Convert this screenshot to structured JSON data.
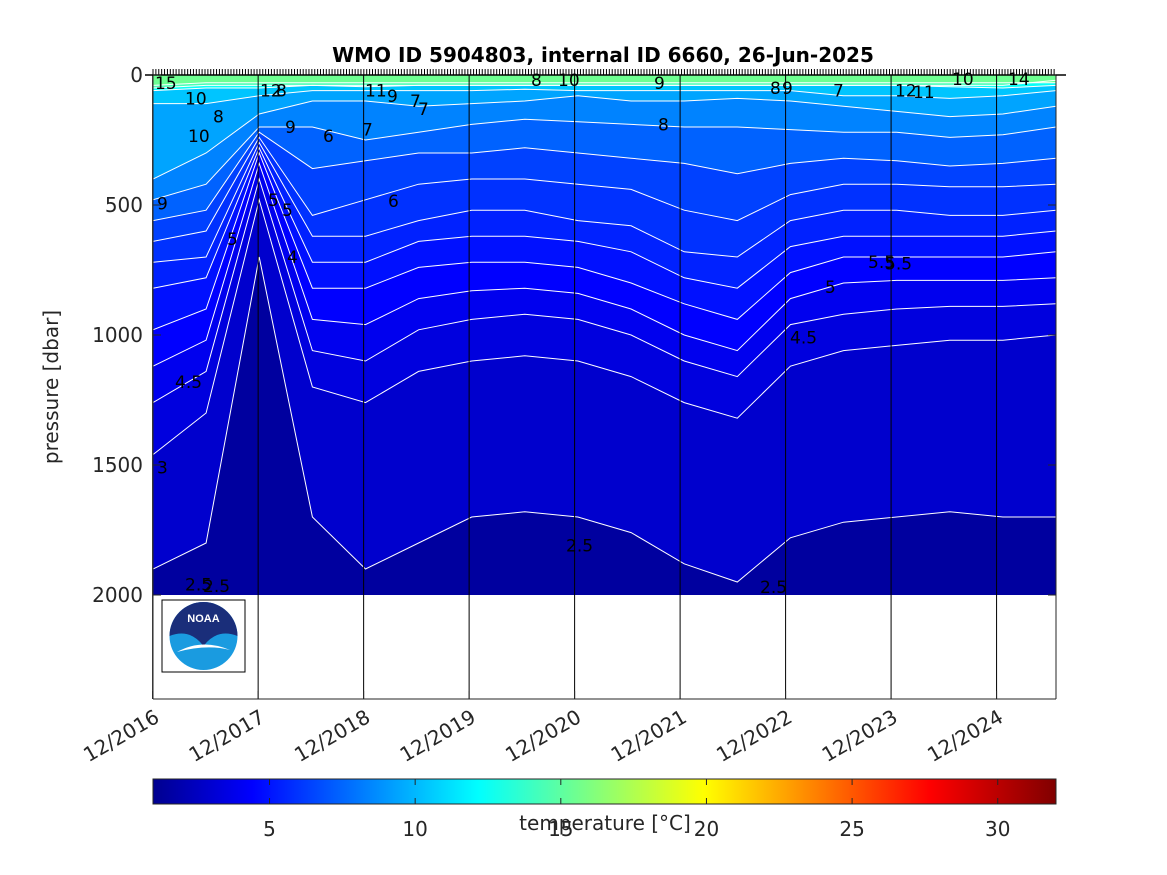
{
  "chart_data": {
    "type": "heatmap",
    "title": "WMO ID 5904803, internal ID 6660, 26-Jun-2025",
    "ylabel": "pressure [dbar]",
    "colorbar_label": "temperature [°C]",
    "y_ticks": [
      "0",
      "500",
      "1000",
      "1500",
      "2000"
    ],
    "ylim": [
      0,
      2400
    ],
    "y_reversed": true,
    "x_tick_labels": [
      "12/2016",
      "12/2017",
      "12/2018",
      "12/2019",
      "12/2020",
      "12/2021",
      "12/2022",
      "12/2023",
      "12/2024"
    ],
    "x_range_years": [
      2016.92,
      2025.48
    ],
    "data_max_pressure": 2000,
    "colorbar_ticks": [
      "5",
      "10",
      "15",
      "20",
      "25",
      "30"
    ],
    "colorbar_range": [
      1,
      32
    ],
    "colormap": "jet",
    "contour_color": "#ffffff",
    "profile_dates_lines_color": "#000000",
    "contour_levels": [
      {
        "label": "15",
        "depths": [
          40,
          30,
          30,
          30,
          30,
          30,
          30,
          30,
          30,
          30,
          30,
          30,
          30,
          30,
          30,
          30,
          30,
          30
        ]
      },
      {
        "label": "14",
        "depths": [
          50,
          40,
          40,
          40,
          40,
          40,
          40,
          40,
          40,
          40,
          40,
          40,
          40,
          40,
          40,
          40,
          40,
          20
        ]
      },
      {
        "label": "12",
        "depths": [
          60,
          50,
          50,
          40,
          45,
          40,
          40,
          40,
          40,
          40,
          40,
          40,
          40,
          40,
          40,
          45,
          50,
          40
        ]
      },
      {
        "label": "10",
        "depths": [
          110,
          110,
          80,
          60,
          60,
          60,
          60,
          55,
          60,
          60,
          60,
          60,
          60,
          80,
          80,
          90,
          80,
          60
        ]
      },
      {
        "label": "9",
        "depths": [
          400,
          300,
          150,
          100,
          100,
          120,
          110,
          100,
          80,
          100,
          100,
          90,
          100,
          120,
          140,
          160,
          150,
          120
        ]
      },
      {
        "label": "8",
        "depths": [
          480,
          420,
          200,
          200,
          250,
          220,
          190,
          170,
          180,
          190,
          200,
          200,
          210,
          220,
          220,
          240,
          230,
          200
        ]
      },
      {
        "label": "7",
        "depths": [
          560,
          520,
          220,
          360,
          330,
          300,
          300,
          280,
          300,
          320,
          340,
          380,
          340,
          320,
          330,
          350,
          340,
          320
        ]
      },
      {
        "label": "6",
        "depths": [
          640,
          600,
          240,
          540,
          480,
          420,
          400,
          400,
          420,
          440,
          520,
          560,
          460,
          420,
          420,
          430,
          430,
          420
        ]
      },
      {
        "label": "5.5",
        "depths": [
          720,
          700,
          260,
          620,
          620,
          560,
          520,
          520,
          560,
          580,
          680,
          700,
          560,
          520,
          520,
          540,
          540,
          520
        ]
      },
      {
        "label": "5",
        "depths": [
          820,
          780,
          280,
          720,
          720,
          640,
          620,
          620,
          640,
          680,
          780,
          820,
          660,
          620,
          620,
          620,
          620,
          600
        ]
      },
      {
        "label": "4.5",
        "depths": [
          980,
          900,
          300,
          820,
          820,
          740,
          720,
          720,
          740,
          800,
          880,
          940,
          760,
          700,
          700,
          700,
          700,
          680
        ]
      },
      {
        "label": "4",
        "depths": [
          1120,
          1020,
          340,
          940,
          960,
          860,
          830,
          820,
          840,
          900,
          1000,
          1060,
          860,
          800,
          790,
          790,
          790,
          780
        ]
      },
      {
        "label": "3.5",
        "depths": [
          1260,
          1140,
          400,
          1060,
          1100,
          980,
          940,
          920,
          940,
          1000,
          1100,
          1160,
          960,
          920,
          900,
          890,
          890,
          880
        ]
      },
      {
        "label": "3",
        "depths": [
          1460,
          1300,
          480,
          1200,
          1260,
          1140,
          1100,
          1080,
          1100,
          1160,
          1260,
          1320,
          1120,
          1060,
          1040,
          1020,
          1020,
          1000
        ]
      },
      {
        "label": "2.5",
        "depths": [
          1900,
          1800,
          700,
          1700,
          1900,
          1800,
          1700,
          1680,
          1700,
          1760,
          1880,
          1950,
          1780,
          1720,
          1700,
          1680,
          1700,
          1700
        ]
      }
    ],
    "contour_labels_visible": [
      "15",
      "10",
      "8",
      "10",
      "12",
      "8",
      "9",
      "6",
      "5",
      "5",
      "4",
      "5",
      "9",
      "11",
      "9",
      "7",
      "7",
      "7",
      "6",
      "5.5",
      "8",
      "10",
      "9",
      "8",
      "8",
      "9",
      "7",
      "12",
      "11",
      "10",
      "14",
      "5.5",
      "5",
      "4.5",
      "4.5",
      "3",
      "2.5",
      "2.5",
      "2.5",
      "2.5"
    ]
  }
}
